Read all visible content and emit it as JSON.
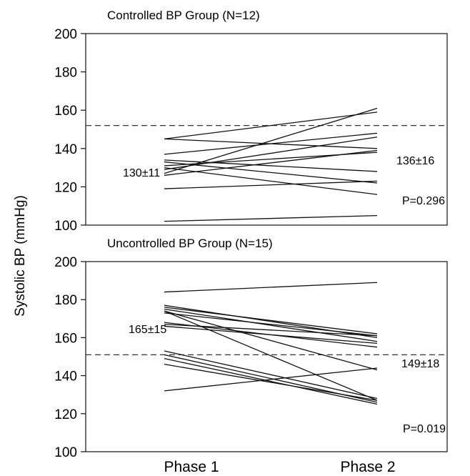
{
  "chart_data": [
    {
      "type": "line",
      "title": "Controlled BP Group (N=12)",
      "ylabel": "Systolic BP (mmHg)",
      "categories": [
        "Phase 1",
        "Phase 2"
      ],
      "ylim": [
        100,
        200
      ],
      "yticks": [
        "100",
        "120",
        "140",
        "160",
        "180",
        "200"
      ],
      "reference_line": 152,
      "series": [
        {
          "values": [
            145,
            159
          ]
        },
        {
          "values": [
            145,
            140
          ]
        },
        {
          "values": [
            137,
            148
          ]
        },
        {
          "values": [
            134,
            128
          ]
        },
        {
          "values": [
            133,
            122
          ]
        },
        {
          "values": [
            131,
            138
          ]
        },
        {
          "values": [
            130,
            116
          ]
        },
        {
          "values": [
            129,
            146
          ]
        },
        {
          "values": [
            127,
            161
          ]
        },
        {
          "values": [
            126,
            139
          ]
        },
        {
          "values": [
            119,
            123
          ]
        },
        {
          "values": [
            102,
            105
          ]
        }
      ],
      "annotations": {
        "phase1_mean": "130±11",
        "phase2_mean": "136±16",
        "p_value": "P=0.296"
      }
    },
    {
      "type": "line",
      "title": "Uncontrolled BP Group (N=15)",
      "categories": [
        "Phase 1",
        "Phase 2"
      ],
      "ylim": [
        100,
        200
      ],
      "yticks": [
        "100",
        "120",
        "140",
        "160",
        "180",
        "200"
      ],
      "reference_line": 151,
      "series": [
        {
          "values": [
            184,
            189
          ]
        },
        {
          "values": [
            177,
            160
          ]
        },
        {
          "values": [
            176,
            162
          ]
        },
        {
          "values": [
            175,
            158
          ]
        },
        {
          "values": [
            174,
            143
          ]
        },
        {
          "values": [
            174,
            127
          ]
        },
        {
          "values": [
            173,
            161
          ]
        },
        {
          "values": [
            168,
            155
          ]
        },
        {
          "values": [
            167,
            161
          ]
        },
        {
          "values": [
            166,
            157
          ]
        },
        {
          "values": [
            153,
            128
          ]
        },
        {
          "values": [
            151,
            126
          ]
        },
        {
          "values": [
            149,
            125
          ]
        },
        {
          "values": [
            146,
            127
          ]
        },
        {
          "values": [
            132,
            144
          ]
        }
      ],
      "annotations": {
        "phase1_mean": "165±15",
        "phase2_mean": "149±18",
        "p_value": "P=0.019"
      }
    }
  ],
  "xticks": [
    "Phase 1",
    "Phase 2"
  ]
}
